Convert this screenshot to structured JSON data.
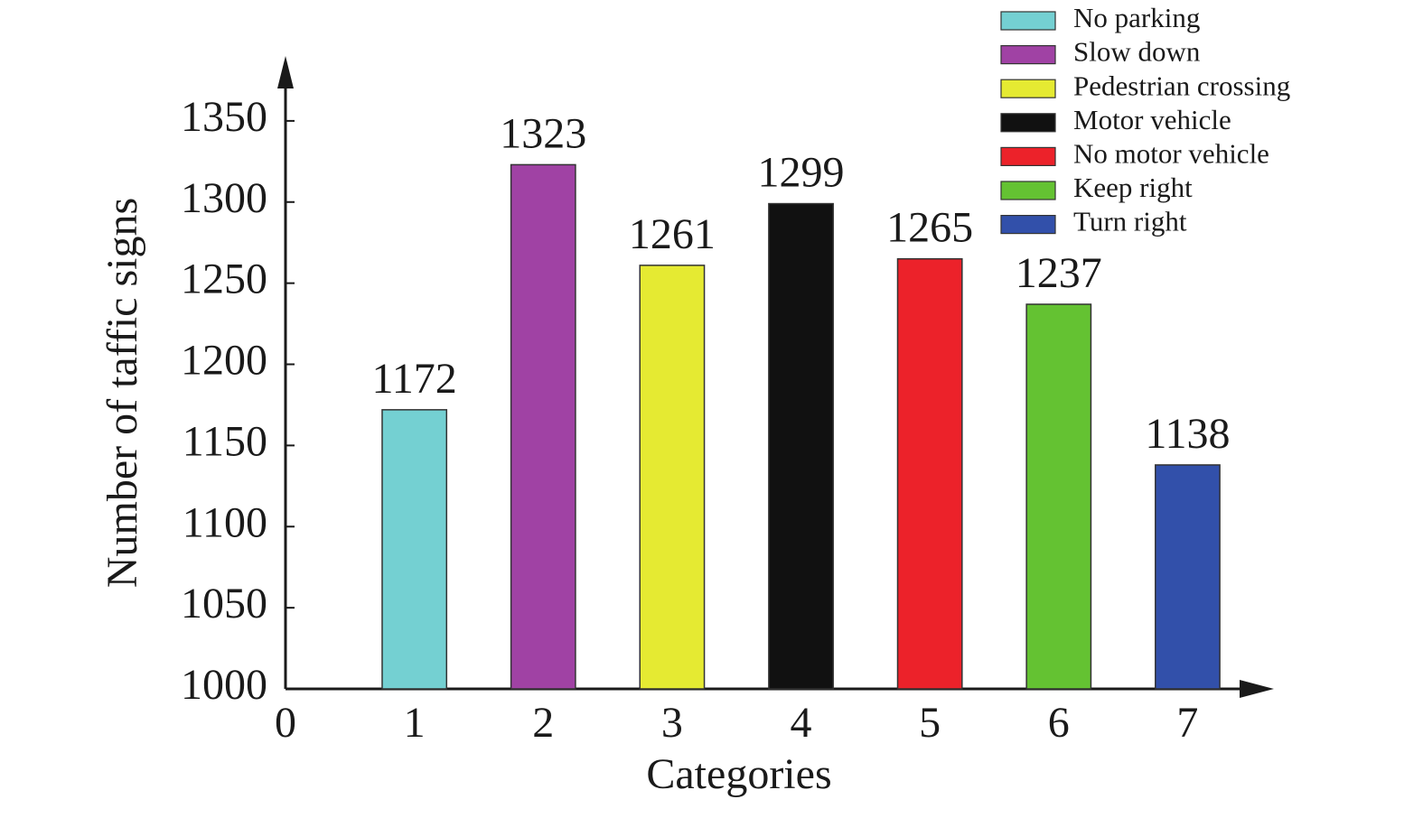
{
  "chart_data": {
    "type": "bar",
    "x_label": "Categories",
    "y_label": "Number of taffic signs",
    "x": [
      1,
      2,
      3,
      4,
      5,
      6,
      7
    ],
    "values": [
      1172,
      1323,
      1261,
      1299,
      1265,
      1237,
      1138
    ],
    "colors": [
      "#74d0d2",
      "#a042a4",
      "#e5ea32",
      "#111111",
      "#ec222a",
      "#64c232",
      "#3250aa"
    ],
    "series_names": [
      "No parking",
      "Slow down",
      "Pedestrian crossing",
      "Motor vehicle",
      "No motor vehicle",
      "Keep right",
      "Turn right"
    ],
    "xlim": [
      0,
      7.67
    ],
    "xticks": [
      0,
      1,
      2,
      3,
      4,
      5,
      6,
      7
    ],
    "ylim": [
      1000,
      1390
    ],
    "yticks": [
      1000,
      1050,
      1100,
      1150,
      1200,
      1250,
      1300,
      1350
    ],
    "legend": "top-right"
  }
}
